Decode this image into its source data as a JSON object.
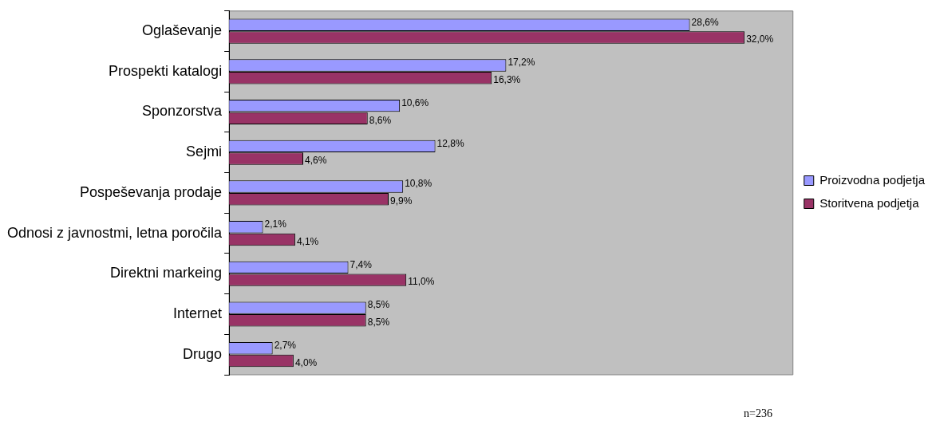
{
  "chart_data": {
    "type": "bar",
    "orientation": "horizontal",
    "categories": [
      "Oglaševanje",
      "Prospekti katalogi",
      "Sponzorstva",
      "Sejmi",
      "Pospeševanja prodaje",
      "Odnosi z javnostmi, letna poročila",
      "Direktni markeing",
      "Internet",
      "Drugo"
    ],
    "series": [
      {
        "name": "Proizvodna podjetja",
        "color": "#9999ff",
        "values": [
          28.6,
          17.2,
          10.6,
          12.8,
          10.8,
          2.1,
          7.4,
          8.5,
          2.7
        ],
        "value_labels": [
          "28,6%",
          "17,2%",
          "10,6%",
          "12,8%",
          "10,8%",
          "2,1%",
          "7,4%",
          "8,5%",
          "2,7%"
        ]
      },
      {
        "name": "Storitvena podjetja",
        "color": "#993366",
        "values": [
          32.0,
          16.3,
          8.6,
          4.6,
          9.9,
          4.1,
          11.0,
          8.5,
          4.0
        ],
        "value_labels": [
          "32,0%",
          "16,3%",
          "8,6%",
          "4,6%",
          "9,9%",
          "4,1%",
          "11,0%",
          "8,5%",
          "4,0%"
        ]
      }
    ],
    "legend": "right",
    "annotations": [
      "n=236"
    ]
  }
}
